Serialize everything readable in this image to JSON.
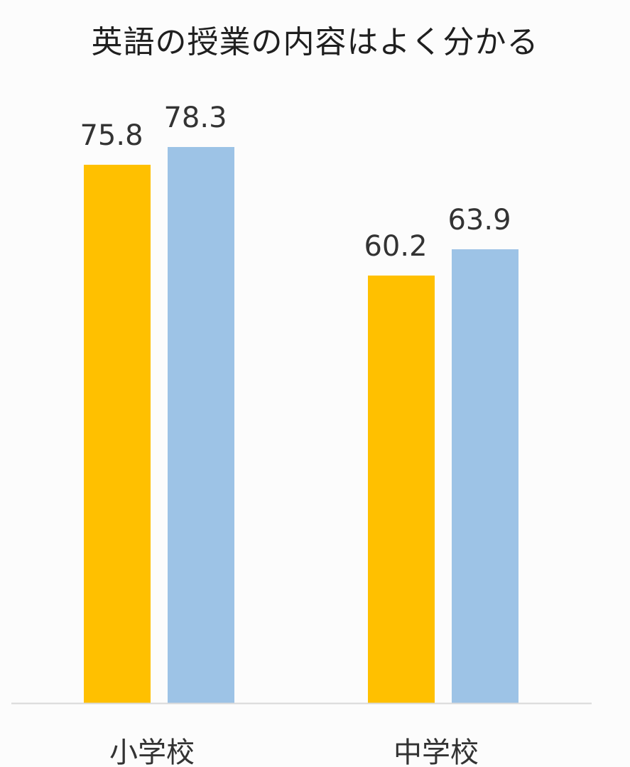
{
  "chart_data": {
    "type": "bar",
    "title": "英語の授業の内容はよく分かる",
    "categories": [
      "小学校",
      "中学校"
    ],
    "series": [
      {
        "color": "#ffc000",
        "values": [
          75.8,
          60.2
        ]
      },
      {
        "color": "#9dc3e6",
        "values": [
          78.3,
          63.9
        ]
      }
    ],
    "ylim": [
      0,
      100
    ],
    "grid": false,
    "legend": "none",
    "axis_color": "#d9d9d9"
  }
}
